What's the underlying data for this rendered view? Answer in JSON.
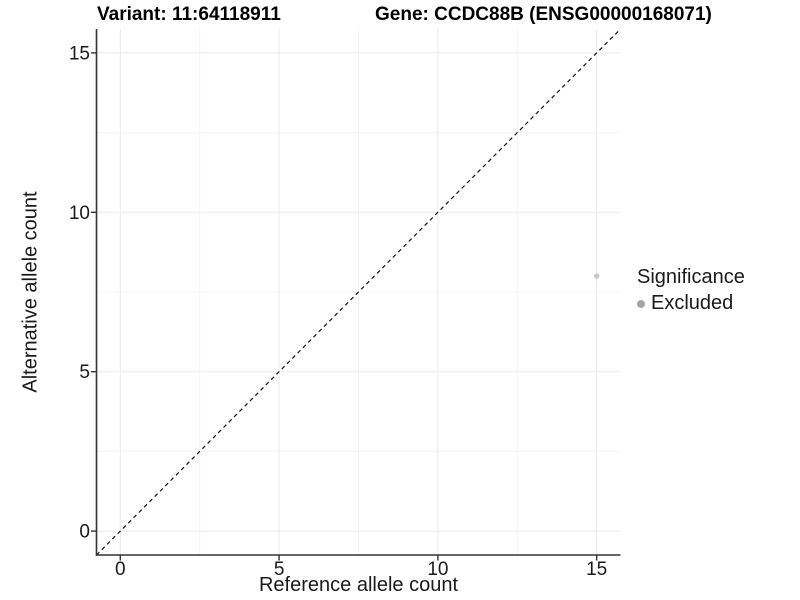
{
  "chart_data": {
    "type": "scatter",
    "titles": {
      "left": "Variant: 11:64118911",
      "right": "Gene: CCDC88B (ENSG00000168071)"
    },
    "xlabel": "Reference allele count",
    "ylabel": "Alternative allele count",
    "xlim": [
      -0.75,
      15.75
    ],
    "ylim": [
      -0.75,
      15.75
    ],
    "x_ticks": [
      0,
      5,
      10,
      15
    ],
    "y_ticks": [
      0,
      5,
      10,
      15
    ],
    "x_minor": [
      2.5,
      7.5,
      12.5
    ],
    "y_minor": [
      2.5,
      7.5,
      12.5
    ],
    "grid": "major+minor",
    "points": [
      {
        "x": 15,
        "y": 8,
        "series": "Excluded"
      }
    ],
    "identity_line": {
      "style": "dashed",
      "slope": 1,
      "intercept": 0
    },
    "legend": {
      "title": "Significance",
      "position": "right",
      "entries": [
        {
          "label": "Excluded",
          "key_color": "#a6a6a6"
        }
      ]
    },
    "colors": {
      "point": "#c8c8c8",
      "legend_key": "#a6a6a6",
      "grid_major": "#ebebeb",
      "grid_minor": "#f5f5f5",
      "axis": "#333333",
      "tick_label": "#1a1a1a",
      "title": "#000000",
      "identity_line": "#111111",
      "background": "#ffffff"
    }
  }
}
